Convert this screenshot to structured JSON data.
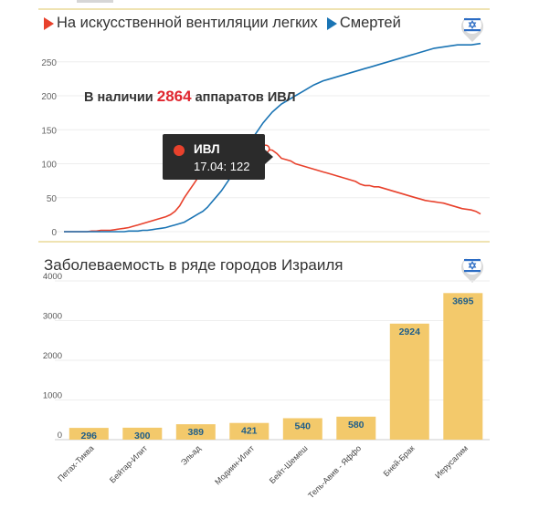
{
  "line_chart": {
    "legend": [
      {
        "label": "На искусственной вентиляции легких",
        "color": "#e8412c"
      },
      {
        "label": "Смертей",
        "color": "#1a74b4"
      }
    ],
    "callout_prefix": "В наличии",
    "callout_value": "2864",
    "callout_suffix": "аппаратов ИВЛ",
    "tooltip": {
      "series": "ИВЛ",
      "value": "17.04: 122"
    },
    "badge_icon": "israel-flag-pin-icon"
  },
  "bar_chart": {
    "title": "Заболеваемость в ряде городов Израиля",
    "badge_icon": "israel-flag-pin-icon"
  },
  "chart_data": [
    {
      "type": "line",
      "title": "",
      "ylim": [
        0,
        290
      ],
      "yticks": [
        0,
        50,
        100,
        150,
        200,
        250
      ],
      "ytick_labels": [
        "0",
        "50",
        "100",
        "150",
        "200",
        "250"
      ],
      "grid": true,
      "legend_position": "top-left",
      "x": [
        0,
        1,
        2,
        3,
        4,
        5,
        6,
        7,
        8,
        9,
        10,
        11,
        12,
        13,
        14,
        15,
        16,
        17,
        18,
        19,
        20,
        21,
        22,
        23,
        24,
        25,
        26,
        27,
        28,
        29,
        30,
        31,
        32,
        33,
        34,
        35,
        36,
        37,
        38,
        39,
        40,
        41,
        42,
        43,
        44,
        45,
        46,
        47,
        48,
        49,
        50,
        51,
        52,
        53,
        54,
        55,
        56,
        57,
        58,
        59,
        60,
        61,
        62,
        63,
        64,
        65,
        66,
        67,
        68,
        69,
        70,
        71,
        72,
        73,
        74,
        75,
        76,
        77,
        78,
        79,
        80,
        81,
        82,
        83,
        84,
        85,
        86,
        87,
        88,
        89,
        90
      ],
      "series": [
        {
          "name": "На искусственной вентиляции легких",
          "color": "#e8412c",
          "values": [
            0,
            0,
            0,
            0,
            0,
            0,
            1,
            1,
            2,
            2,
            2,
            3,
            4,
            5,
            6,
            8,
            10,
            12,
            14,
            16,
            18,
            20,
            22,
            25,
            30,
            38,
            50,
            60,
            70,
            80,
            85,
            90,
            95,
            100,
            105,
            108,
            110,
            112,
            118,
            118,
            120,
            121,
            122,
            122,
            121,
            120,
            115,
            108,
            106,
            104,
            100,
            98,
            96,
            94,
            92,
            90,
            88,
            86,
            84,
            82,
            80,
            78,
            76,
            74,
            70,
            68,
            68,
            66,
            66,
            64,
            62,
            60,
            58,
            56,
            54,
            52,
            50,
            48,
            46,
            45,
            44,
            43,
            42,
            40,
            38,
            36,
            34,
            33,
            32,
            30,
            26
          ]
        },
        {
          "name": "Смертей",
          "color": "#1a74b4",
          "values": [
            0,
            0,
            0,
            0,
            0,
            0,
            0,
            0,
            0,
            0,
            0,
            0,
            0,
            0,
            1,
            1,
            1,
            2,
            2,
            3,
            4,
            5,
            6,
            8,
            10,
            12,
            14,
            18,
            22,
            26,
            30,
            36,
            44,
            52,
            60,
            70,
            80,
            92,
            104,
            118,
            130,
            140,
            150,
            160,
            168,
            176,
            182,
            188,
            192,
            196,
            200,
            204,
            208,
            212,
            216,
            219,
            222,
            224,
            226,
            228,
            230,
            232,
            234,
            236,
            238,
            240,
            242,
            244,
            246,
            248,
            250,
            252,
            254,
            256,
            258,
            260,
            262,
            264,
            266,
            268,
            270,
            271,
            272,
            273,
            274,
            275,
            275,
            275,
            275,
            276,
            277
          ]
        }
      ]
    },
    {
      "type": "bar",
      "title": "Заболеваемость в ряде городов Израиля",
      "categories": [
        "Петах-Тиква",
        "Бейтар-Илит",
        "Эльад",
        "Модиин-Илит",
        "Бейт-Шемеш",
        "Тель-Авив - Яффо",
        "Бней-Брак",
        "Иерусалим"
      ],
      "values": [
        296,
        300,
        389,
        421,
        540,
        580,
        2924,
        3695
      ],
      "ylim": [
        0,
        4000
      ],
      "yticks": [
        0,
        1000,
        2000,
        3000,
        4000
      ],
      "grid": true,
      "bar_color": "#f3c96b",
      "label_color": "#1f5e8a"
    }
  ]
}
